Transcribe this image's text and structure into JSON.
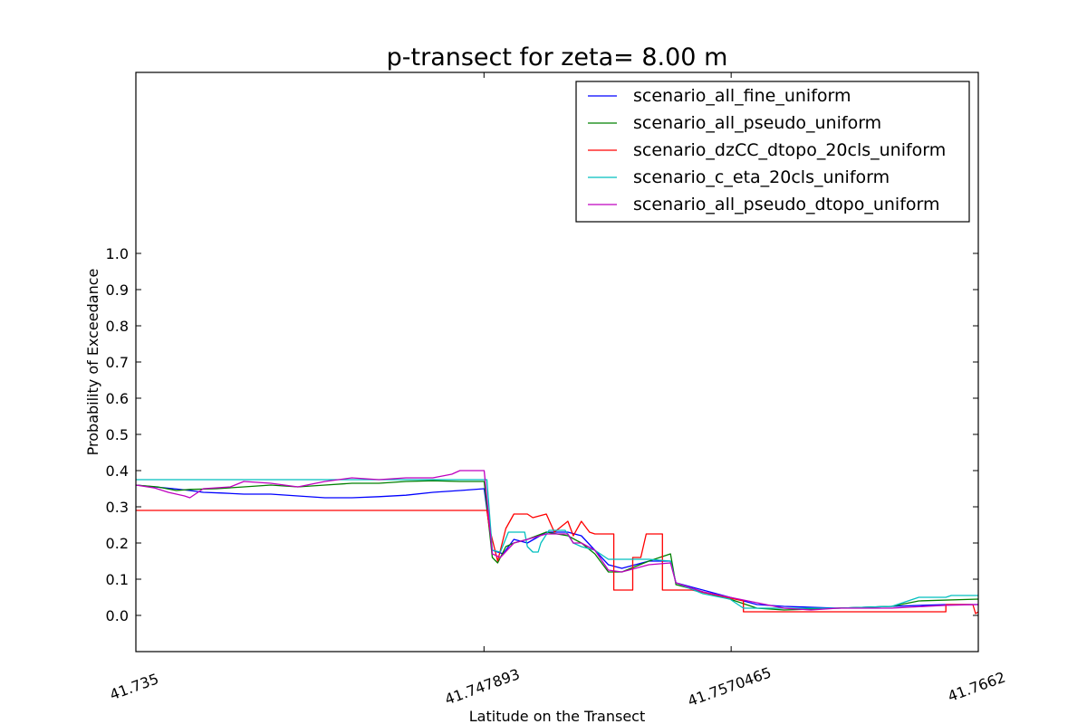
{
  "chart_data": {
    "type": "line",
    "title": "p-transect for zeta= 8.00 m",
    "xlabel": "Latitude on the Transect",
    "ylabel": "Probability of Exceedance",
    "xlim": [
      41.735,
      41.7662
    ],
    "ylim": [
      -0.1,
      1.5
    ],
    "yticks": [
      0.0,
      0.1,
      0.2,
      0.3,
      0.4,
      0.5,
      0.6,
      0.7,
      0.8,
      0.9,
      1.0
    ],
    "ytick_labels": [
      "0.0",
      "0.1",
      "0.2",
      "0.3",
      "0.4",
      "0.5",
      "0.6",
      "0.7",
      "0.8",
      "0.9",
      "1.0"
    ],
    "xticks": [
      41.735,
      41.747893,
      41.7570465,
      41.7662
    ],
    "xtick_labels": [
      "41.735",
      "41.747893",
      "41.7570465",
      "41.7662"
    ],
    "grid": false,
    "legend_position": "top-right",
    "series": [
      {
        "name": "scenario_all_fine_uniform",
        "color": "#0000ff",
        "points": [
          [
            41.735,
            0.36
          ],
          [
            41.7357,
            0.355
          ],
          [
            41.7364,
            0.35
          ],
          [
            41.737,
            0.345
          ],
          [
            41.7375,
            0.34
          ],
          [
            41.7382,
            0.338
          ],
          [
            41.739,
            0.335
          ],
          [
            41.74,
            0.335
          ],
          [
            41.741,
            0.33
          ],
          [
            41.742,
            0.325
          ],
          [
            41.743,
            0.325
          ],
          [
            41.744,
            0.328
          ],
          [
            41.745,
            0.332
          ],
          [
            41.746,
            0.34
          ],
          [
            41.747,
            0.345
          ],
          [
            41.7479,
            0.35
          ],
          [
            41.7482,
            0.18
          ],
          [
            41.7486,
            0.17
          ],
          [
            41.749,
            0.21
          ],
          [
            41.7495,
            0.2
          ],
          [
            41.7502,
            0.23
          ],
          [
            41.751,
            0.23
          ],
          [
            41.7515,
            0.22
          ],
          [
            41.752,
            0.18
          ],
          [
            41.7525,
            0.14
          ],
          [
            41.753,
            0.13
          ],
          [
            41.754,
            0.15
          ],
          [
            41.7548,
            0.15
          ],
          [
            41.755,
            0.09
          ],
          [
            41.756,
            0.07
          ],
          [
            41.757,
            0.05
          ],
          [
            41.758,
            0.03
          ],
          [
            41.759,
            0.025
          ],
          [
            41.761,
            0.02
          ],
          [
            41.763,
            0.025
          ],
          [
            41.765,
            0.03
          ],
          [
            41.7662,
            0.03
          ]
        ]
      },
      {
        "name": "scenario_all_pseudo_uniform",
        "color": "#008000",
        "points": [
          [
            41.735,
            0.36
          ],
          [
            41.7358,
            0.355
          ],
          [
            41.7365,
            0.345
          ],
          [
            41.737,
            0.348
          ],
          [
            41.738,
            0.35
          ],
          [
            41.739,
            0.355
          ],
          [
            41.74,
            0.36
          ],
          [
            41.741,
            0.355
          ],
          [
            41.742,
            0.36
          ],
          [
            41.743,
            0.365
          ],
          [
            41.744,
            0.365
          ],
          [
            41.745,
            0.37
          ],
          [
            41.746,
            0.372
          ],
          [
            41.747,
            0.37
          ],
          [
            41.7479,
            0.37
          ],
          [
            41.7482,
            0.16
          ],
          [
            41.7484,
            0.145
          ],
          [
            41.7487,
            0.19
          ],
          [
            41.749,
            0.2
          ],
          [
            41.7495,
            0.21
          ],
          [
            41.7502,
            0.23
          ],
          [
            41.751,
            0.22
          ],
          [
            41.7515,
            0.2
          ],
          [
            41.752,
            0.17
          ],
          [
            41.7525,
            0.12
          ],
          [
            41.753,
            0.12
          ],
          [
            41.754,
            0.15
          ],
          [
            41.7548,
            0.17
          ],
          [
            41.755,
            0.085
          ],
          [
            41.756,
            0.065
          ],
          [
            41.757,
            0.045
          ],
          [
            41.758,
            0.02
          ],
          [
            41.759,
            0.015
          ],
          [
            41.761,
            0.02
          ],
          [
            41.763,
            0.025
          ],
          [
            41.764,
            0.04
          ],
          [
            41.7662,
            0.045
          ]
        ]
      },
      {
        "name": "scenario_dzCC_dtopo_20cls_uniform",
        "color": "#ff0000",
        "points": [
          [
            41.735,
            0.29
          ],
          [
            41.7479,
            0.29
          ],
          [
            41.748,
            0.29
          ],
          [
            41.7481,
            0.24
          ],
          [
            41.7484,
            0.15
          ],
          [
            41.7487,
            0.24
          ],
          [
            41.749,
            0.28
          ],
          [
            41.7495,
            0.28
          ],
          [
            41.7497,
            0.27
          ],
          [
            41.7502,
            0.28
          ],
          [
            41.7505,
            0.23
          ],
          [
            41.751,
            0.26
          ],
          [
            41.7512,
            0.22
          ],
          [
            41.7515,
            0.26
          ],
          [
            41.7518,
            0.23
          ],
          [
            41.752,
            0.225
          ],
          [
            41.7527,
            0.225
          ],
          [
            41.7527,
            0.07
          ],
          [
            41.7534,
            0.07
          ],
          [
            41.7534,
            0.16
          ],
          [
            41.7537,
            0.16
          ],
          [
            41.7539,
            0.225
          ],
          [
            41.7545,
            0.225
          ],
          [
            41.7545,
            0.07
          ],
          [
            41.7556,
            0.07
          ],
          [
            41.7556,
            0.07
          ],
          [
            41.7575,
            0.04
          ],
          [
            41.7575,
            0.01
          ],
          [
            41.765,
            0.01
          ],
          [
            41.765,
            0.03
          ],
          [
            41.766,
            0.03
          ],
          [
            41.7661,
            0.005
          ],
          [
            41.7662,
            0.01
          ]
        ]
      },
      {
        "name": "scenario_c_eta_20cls_uniform",
        "color": "#00bfbf",
        "points": [
          [
            41.735,
            0.375
          ],
          [
            41.7479,
            0.375
          ],
          [
            41.748,
            0.375
          ],
          [
            41.7482,
            0.18
          ],
          [
            41.7485,
            0.175
          ],
          [
            41.7488,
            0.23
          ],
          [
            41.7494,
            0.23
          ],
          [
            41.7495,
            0.19
          ],
          [
            41.7497,
            0.175
          ],
          [
            41.7499,
            0.175
          ],
          [
            41.75,
            0.2
          ],
          [
            41.7503,
            0.235
          ],
          [
            41.7509,
            0.235
          ],
          [
            41.7512,
            0.2
          ],
          [
            41.7515,
            0.19
          ],
          [
            41.752,
            0.18
          ],
          [
            41.7525,
            0.155
          ],
          [
            41.7535,
            0.155
          ],
          [
            41.754,
            0.155
          ],
          [
            41.7548,
            0.15
          ],
          [
            41.755,
            0.09
          ],
          [
            41.756,
            0.06
          ],
          [
            41.757,
            0.045
          ],
          [
            41.7575,
            0.02
          ],
          [
            41.758,
            0.02
          ],
          [
            41.759,
            0.02
          ],
          [
            41.761,
            0.02
          ],
          [
            41.763,
            0.025
          ],
          [
            41.764,
            0.05
          ],
          [
            41.765,
            0.05
          ],
          [
            41.7652,
            0.055
          ],
          [
            41.7662,
            0.055
          ]
        ]
      },
      {
        "name": "scenario_all_pseudo_dtopo_uniform",
        "color": "#bf00bf",
        "points": [
          [
            41.735,
            0.36
          ],
          [
            41.7357,
            0.352
          ],
          [
            41.7362,
            0.34
          ],
          [
            41.7368,
            0.33
          ],
          [
            41.737,
            0.325
          ],
          [
            41.7375,
            0.35
          ],
          [
            41.7385,
            0.355
          ],
          [
            41.739,
            0.37
          ],
          [
            41.74,
            0.365
          ],
          [
            41.741,
            0.355
          ],
          [
            41.742,
            0.37
          ],
          [
            41.743,
            0.38
          ],
          [
            41.744,
            0.375
          ],
          [
            41.745,
            0.38
          ],
          [
            41.746,
            0.38
          ],
          [
            41.7467,
            0.39
          ],
          [
            41.747,
            0.4
          ],
          [
            41.7479,
            0.4
          ],
          [
            41.7482,
            0.17
          ],
          [
            41.7485,
            0.16
          ],
          [
            41.749,
            0.2
          ],
          [
            41.7495,
            0.21
          ],
          [
            41.7502,
            0.225
          ],
          [
            41.751,
            0.225
          ],
          [
            41.7512,
            0.2
          ],
          [
            41.7515,
            0.2
          ],
          [
            41.752,
            0.18
          ],
          [
            41.7525,
            0.125
          ],
          [
            41.753,
            0.12
          ],
          [
            41.754,
            0.14
          ],
          [
            41.7548,
            0.145
          ],
          [
            41.755,
            0.09
          ],
          [
            41.756,
            0.065
          ],
          [
            41.757,
            0.05
          ],
          [
            41.758,
            0.035
          ],
          [
            41.759,
            0.02
          ],
          [
            41.76,
            0.015
          ],
          [
            41.761,
            0.02
          ],
          [
            41.763,
            0.02
          ],
          [
            41.765,
            0.028
          ],
          [
            41.7662,
            0.03
          ]
        ]
      }
    ]
  }
}
